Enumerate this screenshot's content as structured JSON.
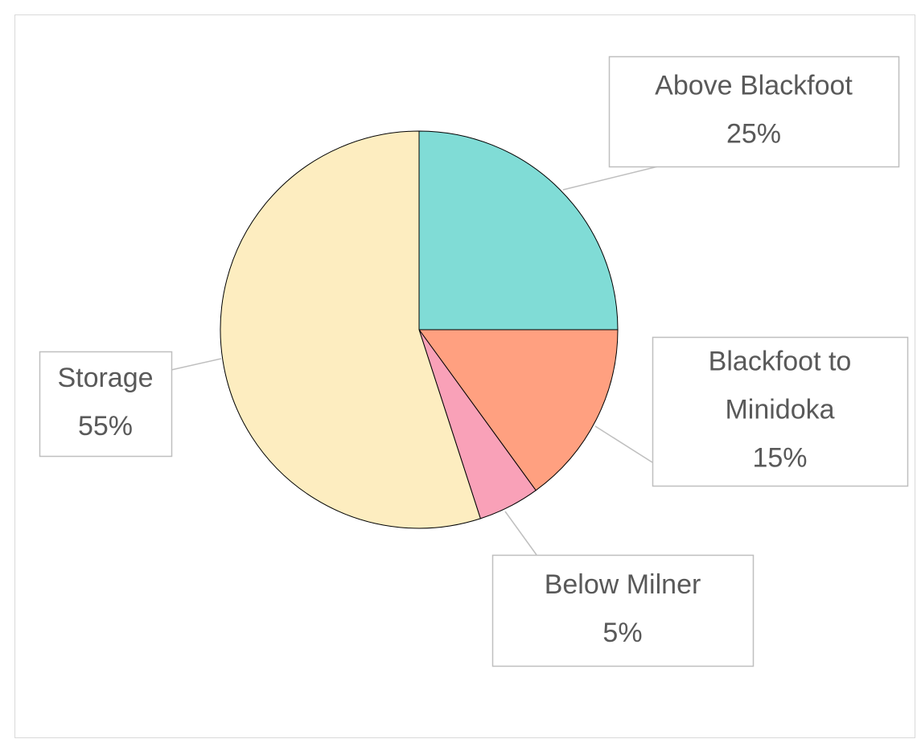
{
  "chart_data": {
    "type": "pie",
    "categories": [
      "Above Blackfoot",
      "Blackfoot to Minidoka",
      "Below Milner",
      "Storage"
    ],
    "values": [
      25,
      15,
      5,
      55
    ],
    "value_labels": [
      "25%",
      "15%",
      "5%",
      "55%"
    ],
    "colors": [
      "#80dcd6",
      "#ffa080",
      "#f9a1b8",
      "#fdedc0"
    ]
  }
}
